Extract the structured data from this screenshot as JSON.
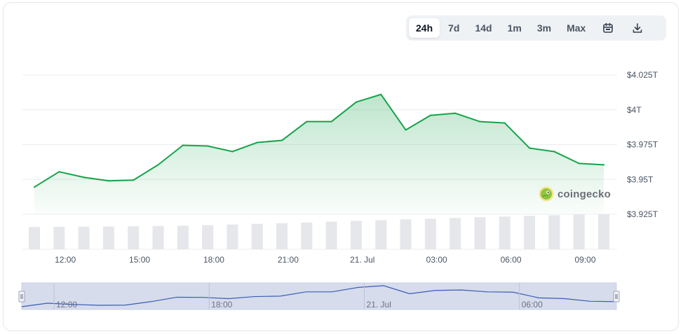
{
  "range_buttons": [
    {
      "label": "24h",
      "active": true
    },
    {
      "label": "7d",
      "active": false
    },
    {
      "label": "14d",
      "active": false
    },
    {
      "label": "1m",
      "active": false
    },
    {
      "label": "3m",
      "active": false
    },
    {
      "label": "Max",
      "active": false
    }
  ],
  "icons": {
    "calendar": "calendar-icon",
    "download": "download-icon",
    "logo": "coingecko-gecko-icon"
  },
  "watermark": {
    "text": "coingecko"
  },
  "colors": {
    "line": "#16a34a",
    "fill": "#16a34a",
    "volume": "#e5e7eb",
    "navigator_line": "#3b5bb5",
    "navigator_fill": "#d6dcec",
    "logo": "#8dc63f"
  },
  "chart_data": {
    "type": "area",
    "x": [
      "2025-07-20 10:45",
      "2025-07-20 11:45",
      "2025-07-20 12:45",
      "2025-07-20 13:45",
      "2025-07-20 14:45",
      "2025-07-20 15:45",
      "2025-07-20 16:45",
      "2025-07-20 17:45",
      "2025-07-20 18:45",
      "2025-07-20 19:45",
      "2025-07-20 20:45",
      "2025-07-20 21:45",
      "2025-07-20 22:45",
      "2025-07-20 23:45",
      "2025-07-21 00:45",
      "2025-07-21 01:45",
      "2025-07-21 02:45",
      "2025-07-21 03:45",
      "2025-07-21 04:45",
      "2025-07-21 05:45",
      "2025-07-21 06:45",
      "2025-07-21 07:45",
      "2025-07-21 08:45",
      "2025-07-21 09:45"
    ],
    "series": [
      {
        "values": [
          3.9445,
          3.9555,
          3.9515,
          3.949,
          3.9495,
          3.9605,
          3.9745,
          3.974,
          3.97,
          3.9765,
          3.978,
          3.9915,
          3.9915,
          4.0055,
          4.011,
          3.9855,
          3.996,
          3.9975,
          3.9915,
          3.9905,
          3.9725,
          3.97,
          3.9615,
          3.9605
        ]
      }
    ],
    "volume": [
      13.5,
      13.6,
      13.7,
      13.8,
      13.9,
      14.1,
      14.3,
      14.6,
      15.0,
      15.4,
      15.8,
      16.2,
      16.7,
      17.2,
      17.6,
      18.1,
      18.5,
      19.0,
      19.4,
      19.8,
      20.2,
      20.6,
      21.0,
      21.2
    ],
    "ylim": [
      3.9,
      4.035
    ],
    "yticks": [
      3.925,
      3.95,
      3.975,
      4.0,
      4.025
    ],
    "ytick_labels": [
      "$3.925T",
      "$3.95T",
      "$3.975T",
      "$4T",
      "$4.025T"
    ],
    "xticks": [
      "2025-07-20 12:00",
      "2025-07-20 15:00",
      "2025-07-20 18:00",
      "2025-07-20 21:00",
      "2025-07-21 00:00",
      "2025-07-21 03:00",
      "2025-07-21 06:00",
      "2025-07-21 09:00"
    ],
    "xtick_labels": [
      "12:00",
      "15:00",
      "18:00",
      "21:00",
      "21. Jul",
      "03:00",
      "06:00",
      "09:00"
    ],
    "navigator_ticks": [
      "2025-07-20 12:00",
      "2025-07-20 18:00",
      "2025-07-21 00:00",
      "2025-07-21 06:00"
    ],
    "navigator_tick_labels": [
      "12:00",
      "18:00",
      "21. Jul",
      "06:00"
    ],
    "grid": true,
    "legend": "none"
  }
}
